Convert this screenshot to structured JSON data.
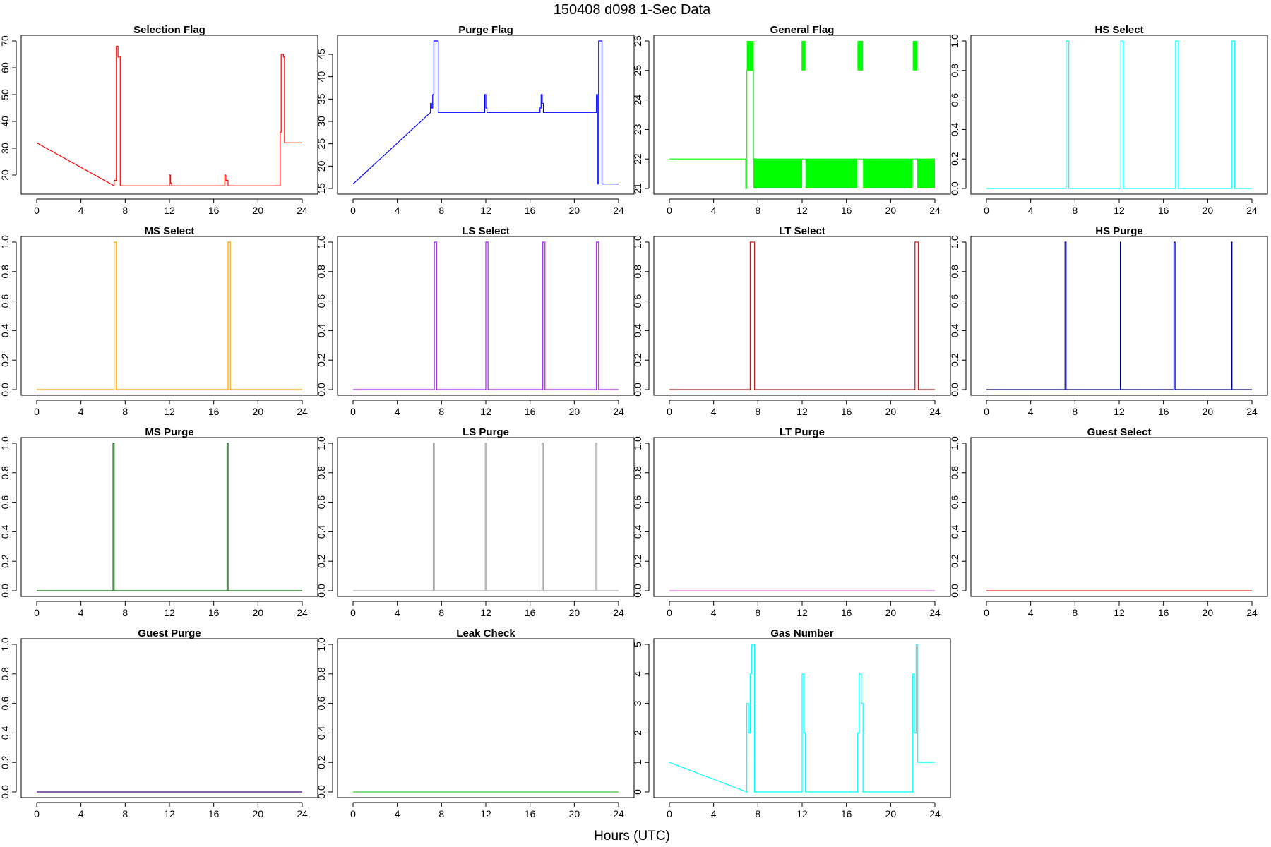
{
  "figure": {
    "title": "150408   d098   1-Sec Data",
    "xlabel": "Hours (UTC)"
  },
  "chart_data": [
    {
      "type": "line",
      "title": "Selection Flag",
      "color": "#ff0000",
      "xlim": [
        0,
        24
      ],
      "xticks": [
        0,
        4,
        8,
        12,
        16,
        20,
        24
      ],
      "ylim": [
        15,
        70
      ],
      "yticks": [
        20,
        30,
        40,
        50,
        60,
        70
      ],
      "x": [
        0,
        7.0,
        7.0,
        7.2,
        7.2,
        7.35,
        7.35,
        7.55,
        7.55,
        7.6,
        7.6,
        12.0,
        12.0,
        12.1,
        12.1,
        12.2,
        12.2,
        17.0,
        17.0,
        17.1,
        17.1,
        17.3,
        17.3,
        22.0,
        22.0,
        22.1,
        22.1,
        22.3,
        22.3,
        22.4,
        22.4,
        24
      ],
      "y": [
        32,
        16,
        18,
        18,
        68,
        68,
        64,
        64,
        16,
        16,
        16,
        16,
        20,
        20,
        17,
        17,
        16,
        16,
        20,
        20,
        18,
        18,
        16,
        16,
        36,
        36,
        65,
        65,
        64,
        64,
        32,
        32
      ]
    },
    {
      "type": "line",
      "title": "Purge Flag",
      "color": "#0000ff",
      "xlim": [
        0,
        24
      ],
      "xticks": [
        0,
        4,
        8,
        12,
        16,
        20,
        24
      ],
      "ylim": [
        15,
        48
      ],
      "yticks": [
        15,
        20,
        25,
        30,
        35,
        40,
        45
      ],
      "x": [
        0,
        7.0,
        7.0,
        7.1,
        7.1,
        7.2,
        7.2,
        7.3,
        7.3,
        7.7,
        7.7,
        11.9,
        11.9,
        12.0,
        12.0,
        12.1,
        12.1,
        16.9,
        16.9,
        17.0,
        17.0,
        17.1,
        17.1,
        17.2,
        17.2,
        22.0,
        22.0,
        22.1,
        22.1,
        22.2,
        22.2,
        22.5,
        22.5,
        24
      ],
      "y": [
        16,
        32,
        34,
        34,
        33,
        33,
        36,
        36,
        48,
        48,
        32,
        32,
        36,
        36,
        33,
        33,
        32,
        32,
        33,
        33,
        36,
        36,
        34,
        34,
        32,
        32,
        36,
        36,
        16,
        16,
        48,
        48,
        16,
        16
      ]
    },
    {
      "type": "band",
      "title": "General Flag",
      "color": "#00ff00",
      "xlim": [
        0,
        24
      ],
      "xticks": [
        0,
        4,
        8,
        12,
        16,
        20,
        24
      ],
      "ylim": [
        21,
        26
      ],
      "yticks": [
        21,
        22,
        23,
        24,
        25,
        26
      ],
      "x": [
        0,
        6.9,
        6.9,
        7.0,
        7.0,
        7.6,
        7.6,
        24
      ],
      "y": [
        22,
        22,
        21,
        21,
        25,
        25,
        22,
        22
      ],
      "band_ranges": [
        [
          7.6,
          12.0
        ],
        [
          12.3,
          17.0
        ],
        [
          17.5,
          22.0
        ],
        [
          22.4,
          24
        ]
      ],
      "band_levels": [
        21,
        22
      ],
      "spike_ranges": [
        [
          7.0,
          7.6
        ],
        [
          11.95,
          12.3
        ],
        [
          17.0,
          17.5
        ],
        [
          22.0,
          22.4
        ]
      ],
      "spike_levels": [
        25,
        26
      ]
    },
    {
      "type": "line",
      "title": "HS Select",
      "color": "#00ffff",
      "xlim": [
        0,
        24
      ],
      "xticks": [
        0,
        4,
        8,
        12,
        16,
        20,
        24
      ],
      "ylim": [
        0,
        1
      ],
      "yticks": [
        0.0,
        0.2,
        0.4,
        0.6,
        0.8,
        1.0
      ],
      "x": [
        0,
        7.2,
        7.2,
        7.45,
        7.45,
        12.15,
        12.15,
        12.35,
        12.35,
        17.1,
        17.1,
        17.35,
        17.35,
        22.2,
        22.2,
        22.45,
        22.45,
        24
      ],
      "y": [
        0,
        0,
        1,
        1,
        0,
        0,
        1,
        1,
        0,
        0,
        1,
        1,
        0,
        0,
        1,
        1,
        0,
        0
      ]
    },
    {
      "type": "line",
      "title": "MS Select",
      "color": "#ffa500",
      "xlim": [
        0,
        24
      ],
      "xticks": [
        0,
        4,
        8,
        12,
        16,
        20,
        24
      ],
      "ylim": [
        0,
        1
      ],
      "yticks": [
        0.0,
        0.2,
        0.4,
        0.6,
        0.8,
        1.0
      ],
      "x": [
        0,
        7.0,
        7.0,
        7.2,
        7.2,
        17.3,
        17.3,
        17.5,
        17.5,
        24
      ],
      "y": [
        0,
        0,
        1,
        1,
        0,
        0,
        1,
        1,
        0,
        0
      ]
    },
    {
      "type": "line",
      "title": "LS Select",
      "color": "#a020f0",
      "xlim": [
        0,
        24
      ],
      "xticks": [
        0,
        4,
        8,
        12,
        16,
        20,
        24
      ],
      "ylim": [
        0,
        1
      ],
      "yticks": [
        0.0,
        0.2,
        0.4,
        0.6,
        0.8,
        1.0
      ],
      "x": [
        0,
        7.35,
        7.35,
        7.55,
        7.55,
        12.0,
        12.0,
        12.2,
        12.2,
        17.15,
        17.15,
        17.35,
        17.35,
        22.0,
        22.0,
        22.2,
        22.2,
        24
      ],
      "y": [
        0,
        0,
        1,
        1,
        0,
        0,
        1,
        1,
        0,
        0,
        1,
        1,
        0,
        0,
        1,
        1,
        0,
        0
      ]
    },
    {
      "type": "line",
      "title": "LT Select",
      "color": "#b22222",
      "xlim": [
        0,
        24
      ],
      "xticks": [
        0,
        4,
        8,
        12,
        16,
        20,
        24
      ],
      "ylim": [
        0,
        1
      ],
      "yticks": [
        0.0,
        0.2,
        0.4,
        0.6,
        0.8,
        1.0
      ],
      "x": [
        0,
        7.3,
        7.3,
        7.7,
        7.7,
        22.2,
        22.2,
        22.5,
        22.5,
        24
      ],
      "y": [
        0,
        0,
        1,
        1,
        0,
        0,
        1,
        1,
        0,
        0
      ]
    },
    {
      "type": "line",
      "title": "HS Purge",
      "color": "#00008b",
      "xlim": [
        0,
        24
      ],
      "xticks": [
        0,
        4,
        8,
        12,
        16,
        20,
        24
      ],
      "ylim": [
        0,
        1
      ],
      "yticks": [
        0.0,
        0.2,
        0.4,
        0.6,
        0.8,
        1.0
      ],
      "x": [
        0,
        7.1,
        7.1,
        7.2,
        7.2,
        12.1,
        12.1,
        12.15,
        12.15,
        16.95,
        16.95,
        17.05,
        17.05,
        22.15,
        22.15,
        22.2,
        22.2,
        24
      ],
      "y": [
        0,
        0,
        1,
        1,
        0,
        0,
        1,
        1,
        0,
        0,
        1,
        1,
        0,
        0,
        1,
        1,
        0,
        0
      ]
    },
    {
      "type": "line",
      "title": "MS Purge",
      "color": "#006400",
      "xlim": [
        0,
        24
      ],
      "xticks": [
        0,
        4,
        8,
        12,
        16,
        20,
        24
      ],
      "ylim": [
        0,
        1
      ],
      "yticks": [
        0.0,
        0.2,
        0.4,
        0.6,
        0.8,
        1.0
      ],
      "x": [
        0,
        6.9,
        6.9,
        7.0,
        7.0,
        17.2,
        17.2,
        17.3,
        17.3,
        24
      ],
      "y": [
        0,
        0,
        1,
        1,
        0,
        0,
        1,
        1,
        0,
        0
      ]
    },
    {
      "type": "line",
      "title": "LS Purge",
      "color": "#a9a9a9",
      "xlim": [
        0,
        24
      ],
      "xticks": [
        0,
        4,
        8,
        12,
        16,
        20,
        24
      ],
      "ylim": [
        0,
        1
      ],
      "yticks": [
        0.0,
        0.2,
        0.4,
        0.6,
        0.8,
        1.0
      ],
      "x": [
        0,
        7.25,
        7.25,
        7.35,
        7.35,
        11.95,
        11.95,
        12.05,
        12.05,
        17.1,
        17.1,
        17.2,
        17.2,
        21.95,
        21.95,
        22.05,
        22.05,
        24
      ],
      "y": [
        0,
        0,
        1,
        1,
        0,
        0,
        1,
        1,
        0,
        0,
        1,
        1,
        0,
        0,
        1,
        1,
        0,
        0
      ]
    },
    {
      "type": "line",
      "title": "LT Purge",
      "color": "#da70d6",
      "xlim": [
        0,
        24
      ],
      "xticks": [
        0,
        4,
        8,
        12,
        16,
        20,
        24
      ],
      "ylim": [
        0,
        1
      ],
      "yticks": [
        0.0,
        0.2,
        0.4,
        0.6,
        0.8,
        1.0
      ],
      "x": [
        0,
        24
      ],
      "y": [
        0,
        0
      ]
    },
    {
      "type": "line",
      "title": "Guest Select",
      "color": "#e41a1c",
      "xlim": [
        0,
        24
      ],
      "xticks": [
        0,
        4,
        8,
        12,
        16,
        20,
        24
      ],
      "ylim": [
        0,
        1
      ],
      "yticks": [
        0.0,
        0.2,
        0.4,
        0.6,
        0.8,
        1.0
      ],
      "x": [
        0,
        24
      ],
      "y": [
        0,
        0
      ]
    },
    {
      "type": "line",
      "title": "Guest Purge",
      "color": "#4b0082",
      "xlim": [
        0,
        24
      ],
      "xticks": [
        0,
        4,
        8,
        12,
        16,
        20,
        24
      ],
      "ylim": [
        0,
        1
      ],
      "yticks": [
        0.0,
        0.2,
        0.4,
        0.6,
        0.8,
        1.0
      ],
      "x": [
        0,
        24
      ],
      "y": [
        0,
        0
      ]
    },
    {
      "type": "line",
      "title": "Leak Check",
      "color": "#32cd32",
      "xlim": [
        0,
        24
      ],
      "xticks": [
        0,
        4,
        8,
        12,
        16,
        20,
        24
      ],
      "ylim": [
        0,
        1
      ],
      "yticks": [
        0.0,
        0.2,
        0.4,
        0.6,
        0.8,
        1.0
      ],
      "x": [
        0,
        24
      ],
      "y": [
        0,
        0
      ]
    },
    {
      "type": "line",
      "title": "Gas Number",
      "color": "#00ffff",
      "xlim": [
        0,
        24
      ],
      "xticks": [
        0,
        4,
        8,
        12,
        16,
        20,
        24
      ],
      "ylim": [
        0,
        5
      ],
      "yticks": [
        0,
        1,
        2,
        3,
        4,
        5
      ],
      "x": [
        0,
        7.0,
        7.0,
        7.15,
        7.15,
        7.3,
        7.3,
        7.45,
        7.45,
        7.7,
        7.7,
        12.0,
        12.0,
        12.15,
        12.15,
        12.3,
        12.3,
        17.0,
        17.0,
        17.15,
        17.15,
        17.35,
        17.35,
        17.5,
        17.5,
        22.0,
        22.0,
        22.15,
        22.15,
        22.3,
        22.3,
        22.45,
        22.45,
        24
      ],
      "y": [
        1,
        0,
        3,
        3,
        2,
        2,
        4,
        4,
        5,
        5,
        0,
        0,
        4,
        4,
        2,
        2,
        0,
        0,
        2,
        2,
        4,
        4,
        3,
        3,
        0,
        0,
        4,
        4,
        2,
        2,
        5,
        5,
        1,
        1
      ]
    }
  ]
}
